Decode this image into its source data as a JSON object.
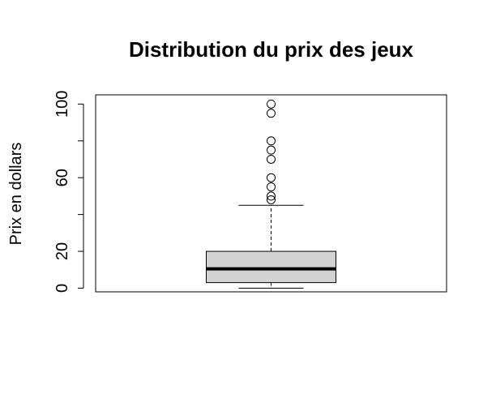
{
  "chart_data": {
    "type": "boxplot",
    "title": "Distribution du prix des jeux",
    "xlabel": "",
    "ylabel": "Prix en dollars",
    "ylim": [
      -2,
      105
    ],
    "yticks": [
      0,
      20,
      40,
      60,
      80,
      100
    ],
    "ytick_labels": [
      "0",
      "20",
      "",
      "60",
      "",
      "100"
    ],
    "box": {
      "min": 0,
      "q1": 3,
      "median": 10.5,
      "q3": 20,
      "whisker_high": 45,
      "fill_color": "#d3d3d3"
    },
    "outliers": [
      48,
      50,
      55,
      60,
      70,
      75,
      80,
      95,
      100
    ],
    "grid": false
  }
}
